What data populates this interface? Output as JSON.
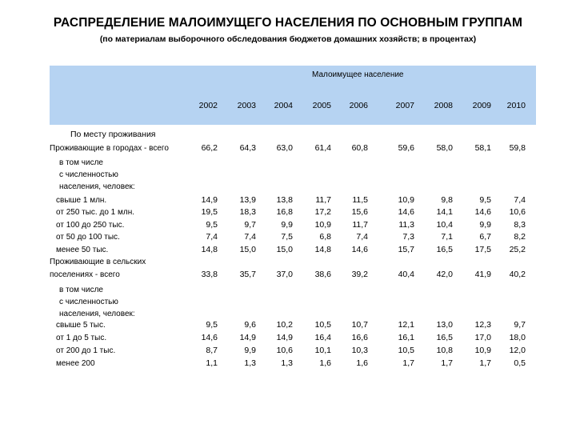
{
  "title": "РАСПРЕДЕЛЕНИЕ МАЛОИМУЩЕГО НАСЕЛЕНИЯ ПО ОСНОВНЫМ ГРУППАМ",
  "subtitle": "(по материалам выборочного обследования бюджетов домашних хозяйств; в процентах)",
  "table": {
    "group_header": "Малоимущее население",
    "years": [
      "2002",
      "2003",
      "2004",
      "2005",
      "2006",
      "2007",
      "2008",
      "2009",
      "2010"
    ],
    "section_label": "По месту проживания",
    "rows": [
      {
        "label": "Проживающие в городах - всего",
        "values": [
          "66,2",
          "64,3",
          "63,0",
          "61,4",
          "60,8",
          "59,6",
          "58,0",
          "58,1",
          "59,8"
        ]
      },
      {
        "label": "в том числе",
        "values": []
      },
      {
        "label": "с численностью",
        "values": []
      },
      {
        "label": "населения, человек:",
        "values": []
      },
      {
        "label": "свыше 1 млн.",
        "values": [
          "14,9",
          "13,9",
          "13,8",
          "11,7",
          "11,5",
          "10,9",
          "9,8",
          "9,5",
          "7,4"
        ]
      },
      {
        "label": "от 250 тыс. до 1 млн.",
        "values": [
          "19,5",
          "18,3",
          "16,8",
          "17,2",
          "15,6",
          "14,6",
          "14,1",
          "14,6",
          "10,6"
        ]
      },
      {
        "label": "от 100 до 250 тыс.",
        "values": [
          "9,5",
          "9,7",
          "9,9",
          "10,9",
          "11,7",
          "11,3",
          "10,4",
          "9,9",
          "8,3"
        ]
      },
      {
        "label": "от 50 до 100 тыс.",
        "values": [
          "7,4",
          "7,4",
          "7,5",
          "6,8",
          "7,4",
          "7,3",
          "7,1",
          "6,7",
          "8,2"
        ]
      },
      {
        "label": "менее 50 тыс.",
        "values": [
          "14,8",
          "15,0",
          "15,0",
          "14,8",
          "14,6",
          "15,7",
          "16,5",
          "17,5",
          "25,2"
        ]
      },
      {
        "label": "Проживающие в сельских",
        "values": []
      },
      {
        "label": "поселениях - всего",
        "values": [
          "33,8",
          "35,7",
          "37,0",
          "38,6",
          "39,2",
          "40,4",
          "42,0",
          "41,9",
          "40,2"
        ]
      },
      {
        "label": "в том числе",
        "values": []
      },
      {
        "label": "с численностью",
        "values": []
      },
      {
        "label": "населения, человек:",
        "values": []
      },
      {
        "label": "свыше 5 тыс.",
        "values": [
          "9,5",
          "9,6",
          "10,2",
          "10,5",
          "10,7",
          "12,1",
          "13,0",
          "12,3",
          "9,7"
        ]
      },
      {
        "label": "от 1 до 5 тыс.",
        "values": [
          "14,6",
          "14,9",
          "14,9",
          "16,4",
          "16,6",
          "16,1",
          "16,5",
          "17,0",
          "18,0"
        ]
      },
      {
        "label": "от 200 до 1 тыс.",
        "values": [
          "8,7",
          "9,9",
          "10,6",
          "10,1",
          "10,3",
          "10,5",
          "10,8",
          "10,9",
          "12,0"
        ]
      },
      {
        "label": "менее 200",
        "values": [
          "1,1",
          "1,3",
          "1,3",
          "1,6",
          "1,6",
          "1,7",
          "1,7",
          "1,7",
          "0,5"
        ]
      }
    ]
  }
}
